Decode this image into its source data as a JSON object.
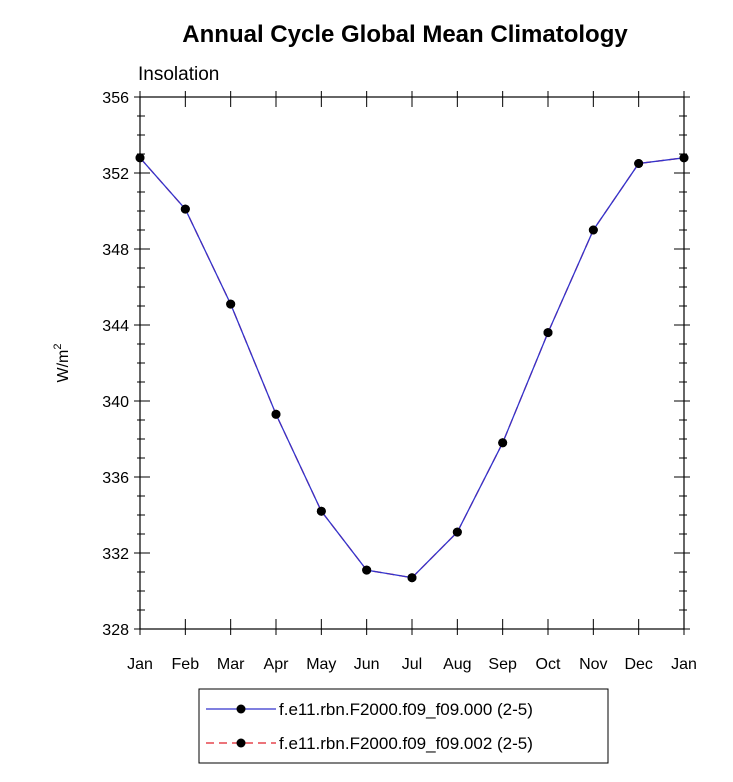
{
  "chart_data": {
    "type": "line",
    "title": "Annual Cycle Global Mean Climatology",
    "subtitle": "Insolation",
    "ylabel": "W/m",
    "ylabel_superscript": "2",
    "xlabel": "",
    "categories": [
      "Jan",
      "Feb",
      "Mar",
      "Apr",
      "May",
      "Jun",
      "Jul",
      "Aug",
      "Sep",
      "Oct",
      "Nov",
      "Dec",
      "Jan"
    ],
    "ylim": [
      328,
      356
    ],
    "yticks": [
      328,
      332,
      336,
      340,
      344,
      348,
      352,
      356
    ],
    "ytick_labels": [
      "328",
      "332",
      "336",
      "340",
      "344",
      "348",
      "352",
      "356"
    ],
    "grid": false,
    "series": [
      {
        "name": "f.e11.rbn.F2000.f09_f09.000 (2-5)",
        "color": "#3333cc",
        "line_style": "solid",
        "marker": "filled-circle",
        "values": [
          352.8,
          350.1,
          345.1,
          339.3,
          334.2,
          331.1,
          330.7,
          333.1,
          337.8,
          343.6,
          349.0,
          352.5,
          352.8
        ]
      },
      {
        "name": "f.e11.rbn.F2000.f09_f09.002 (2-5)",
        "color": "#e0202a",
        "line_style": "dashed",
        "marker": "filled-circle",
        "values": [
          352.8,
          350.1,
          345.1,
          339.3,
          334.2,
          331.1,
          330.7,
          333.1,
          337.8,
          343.6,
          349.0,
          352.5,
          352.8
        ]
      }
    ],
    "legend": "bottom-center"
  }
}
